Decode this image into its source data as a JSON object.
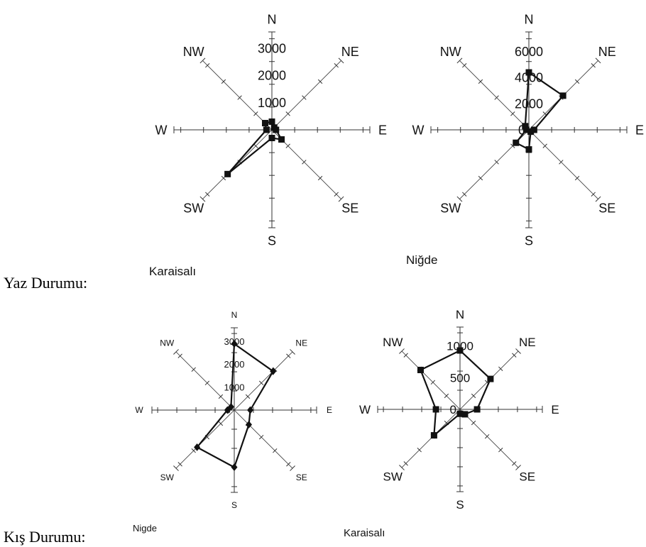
{
  "rows": {
    "summer_label": "Yaz Durumu:",
    "winter_label": "Kış Durumu:"
  },
  "directions": [
    "N",
    "NE",
    "E",
    "SE",
    "S",
    "SW",
    "W",
    "NW"
  ],
  "chart_data": [
    {
      "type": "radar",
      "caption": "Karaisalı",
      "season": "Yaz",
      "radial_ticks": [
        "1000",
        "2000",
        "3000"
      ],
      "rmax": 3600,
      "series": [
        {
          "values": [
            300,
            120,
            150,
            500,
            300,
            2300,
            200,
            350
          ],
          "marker": "square"
        }
      ]
    },
    {
      "type": "radar",
      "caption": "Niğde",
      "season": "Yaz",
      "radial_ticks": [
        "0",
        "2000",
        "4000",
        "6000"
      ],
      "rmax": 7500,
      "series": [
        {
          "values": [
            4400,
            3700,
            400,
            200,
            1500,
            1400,
            200,
            400
          ],
          "marker": "square"
        }
      ]
    },
    {
      "type": "radar",
      "caption": "Nigde",
      "season": "Kış",
      "radial_ticks": [
        "0",
        "1000",
        "2000",
        "3000"
      ],
      "rmax": 3600,
      "series": [
        {
          "values": [
            2900,
            2400,
            700,
            900,
            2500,
            2300,
            300,
            200
          ],
          "marker": "diamond"
        }
      ]
    },
    {
      "type": "radar",
      "caption": "Karaisalı",
      "season": "Kış",
      "radial_ticks": [
        "0",
        "500",
        "1000"
      ],
      "rmax": 1300,
      "series": [
        {
          "values": [
            930,
            680,
            270,
            110,
            70,
            580,
            380,
            880
          ],
          "marker": "square"
        }
      ]
    }
  ]
}
